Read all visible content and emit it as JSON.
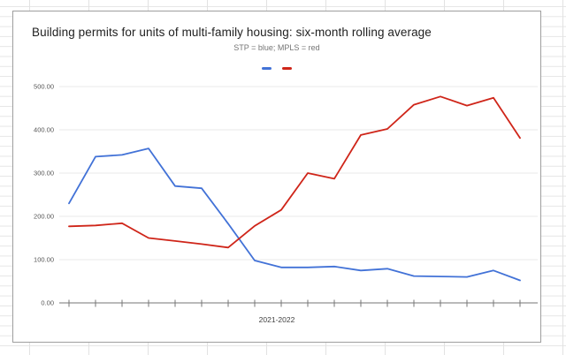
{
  "chart": {
    "title": "Building permits for units of multi-family housing: six-month rolling average",
    "subtitle": "STP = blue; MPLS = red",
    "xlabel": "2021-2022"
  },
  "chart_data": {
    "type": "line",
    "title": "Building permits for units of multi-family housing: six-month rolling average",
    "subtitle": "STP = blue; MPLS = red",
    "xlabel": "2021-2022",
    "ylabel": "",
    "ylim": [
      0,
      500
    ],
    "grid": true,
    "legend_position": "top-center, color swatches only (no text labels)",
    "x_point_count": 18,
    "y_ticks": [
      {
        "v": 500,
        "label": "500.00"
      },
      {
        "v": 400,
        "label": "400.00"
      },
      {
        "v": 300,
        "label": "300.00"
      },
      {
        "v": 200,
        "label": "200.00"
      },
      {
        "v": 100,
        "label": "100.00"
      },
      {
        "v": 0,
        "label": "0.00"
      }
    ],
    "series": [
      {
        "name": "STP",
        "color": "#4272d7",
        "values": [
          230,
          338,
          342,
          357,
          270,
          265,
          183,
          98,
          82,
          82,
          84,
          75,
          79,
          62,
          61,
          60,
          75,
          52
        ]
      },
      {
        "name": "MPLS",
        "color": "#cf2519",
        "values": [
          177,
          179,
          184,
          150,
          143,
          136,
          128,
          178,
          215,
          300,
          287,
          388,
          402,
          458,
          477,
          456,
          474,
          381
        ]
      }
    ]
  }
}
